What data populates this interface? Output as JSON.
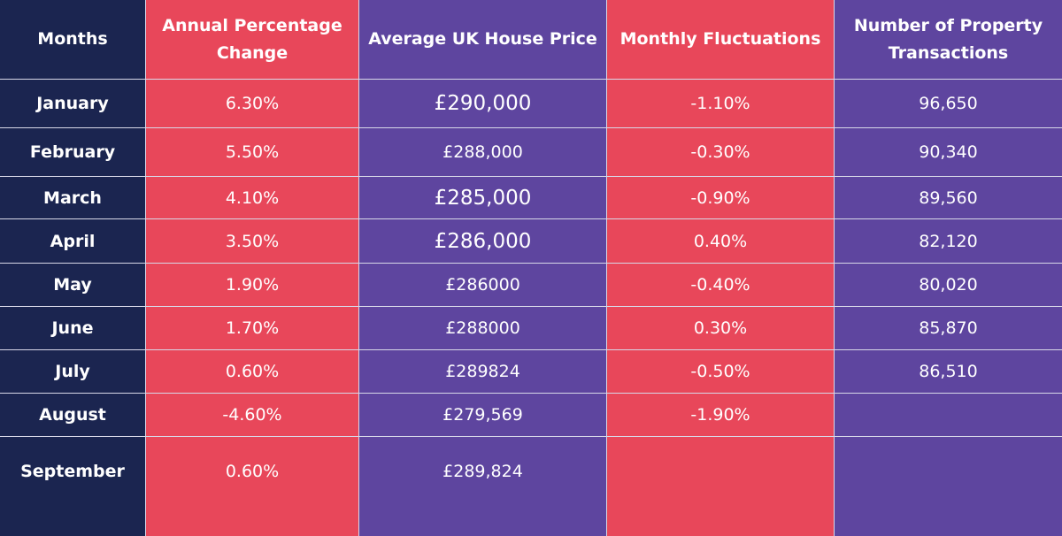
{
  "table": {
    "header": [
      "Months",
      "Annual Percentage Change",
      "Average UK House Price",
      "Monthly Fluctuations",
      "Number of Property Transactions"
    ],
    "rows": [
      [
        "January",
        "6.30%",
        "£290,000",
        "-1.10%",
        "96,650"
      ],
      [
        "February",
        "5.50%",
        "£288,000",
        "-0.30%",
        "90,340"
      ],
      [
        "March",
        "4.10%",
        "£285,000",
        "-0.90%",
        "89,560"
      ],
      [
        "April",
        "3.50%",
        "£286,000",
        "0.40%",
        "82,120"
      ],
      [
        "May",
        "1.90%",
        "£286000",
        "-0.40%",
        "80,020"
      ],
      [
        "June",
        "1.70%",
        "£288000",
        "0.30%",
        "85,870"
      ],
      [
        "July",
        "0.60%",
        "£289824",
        "-0.50%",
        "86,510"
      ],
      [
        "August",
        "-4.60%",
        "£279,569",
        "-1.90%"
      ],
      [
        "September",
        "0.60%",
        "£289,824"
      ]
    ]
  }
}
